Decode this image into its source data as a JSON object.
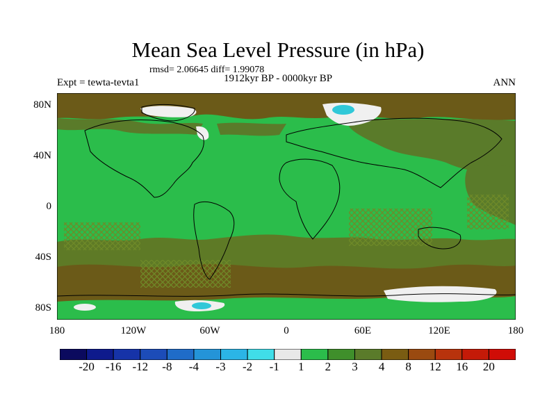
{
  "title": "Mean Sea Level Pressure (in hPa)",
  "stats": "rmsd= 2.06645 diff= 1.99078",
  "experiment": "Expt = tewta-tevta1",
  "period": "1912kyr BP - 0000kyr BP",
  "season": "ANN",
  "lat_labels": [
    "80N",
    "40N",
    "0",
    "40S",
    "80S"
  ],
  "lon_labels": [
    "180",
    "120W",
    "60W",
    "0",
    "60E",
    "120E",
    "180"
  ],
  "colorbar": {
    "labels": [
      "-20",
      "-16",
      "-12",
      "-8",
      "-4",
      "-3",
      "-2",
      "-1",
      "1",
      "2",
      "3",
      "4",
      "8",
      "12",
      "16",
      "20"
    ],
    "colors": [
      "#0b0a5e",
      "#0e1a8c",
      "#1633a8",
      "#1c4cb8",
      "#1f6cc8",
      "#2494d8",
      "#2bb5e6",
      "#40dde8",
      "#e8e8e8",
      "#2bbd4b",
      "#3f8f2b",
      "#5a7b2a",
      "#7a5c12",
      "#9a4a10",
      "#b8330c",
      "#c41a08",
      "#d00c06"
    ]
  },
  "legend_colors": {
    "ocean_green": "#2bbd4b",
    "dark_green": "#4a7c2a",
    "olive": "#6a6a1c",
    "brown": "#7a5418",
    "white": "#f0f0f0",
    "cyan": "#30c8d8"
  }
}
